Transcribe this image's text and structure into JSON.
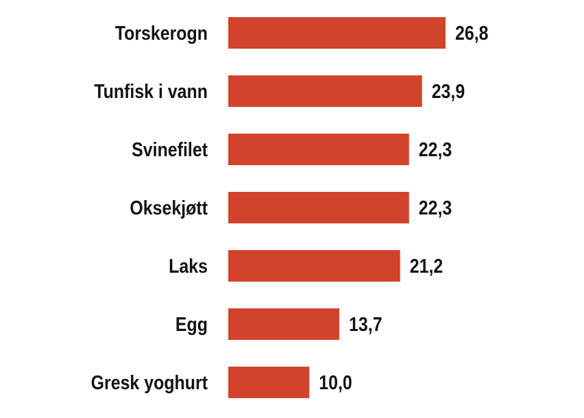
{
  "chart_data": {
    "type": "bar",
    "orientation": "horizontal",
    "categories": [
      "Torskerogn",
      "Tunfisk i vann",
      "Svinefilet",
      "Oksekjøtt",
      "Laks",
      "Egg",
      "Gresk yoghurt"
    ],
    "values": [
      26.8,
      23.9,
      22.3,
      22.3,
      21.2,
      13.7,
      10.0
    ],
    "value_labels": [
      "26,8",
      "23,9",
      "22,3",
      "22,3",
      "21,2",
      "13,7",
      "10,0"
    ],
    "title": "",
    "xlabel": "",
    "ylabel": "",
    "xlim": [
      0,
      26.8
    ],
    "grid": false,
    "bar_color": "#d2432c"
  }
}
